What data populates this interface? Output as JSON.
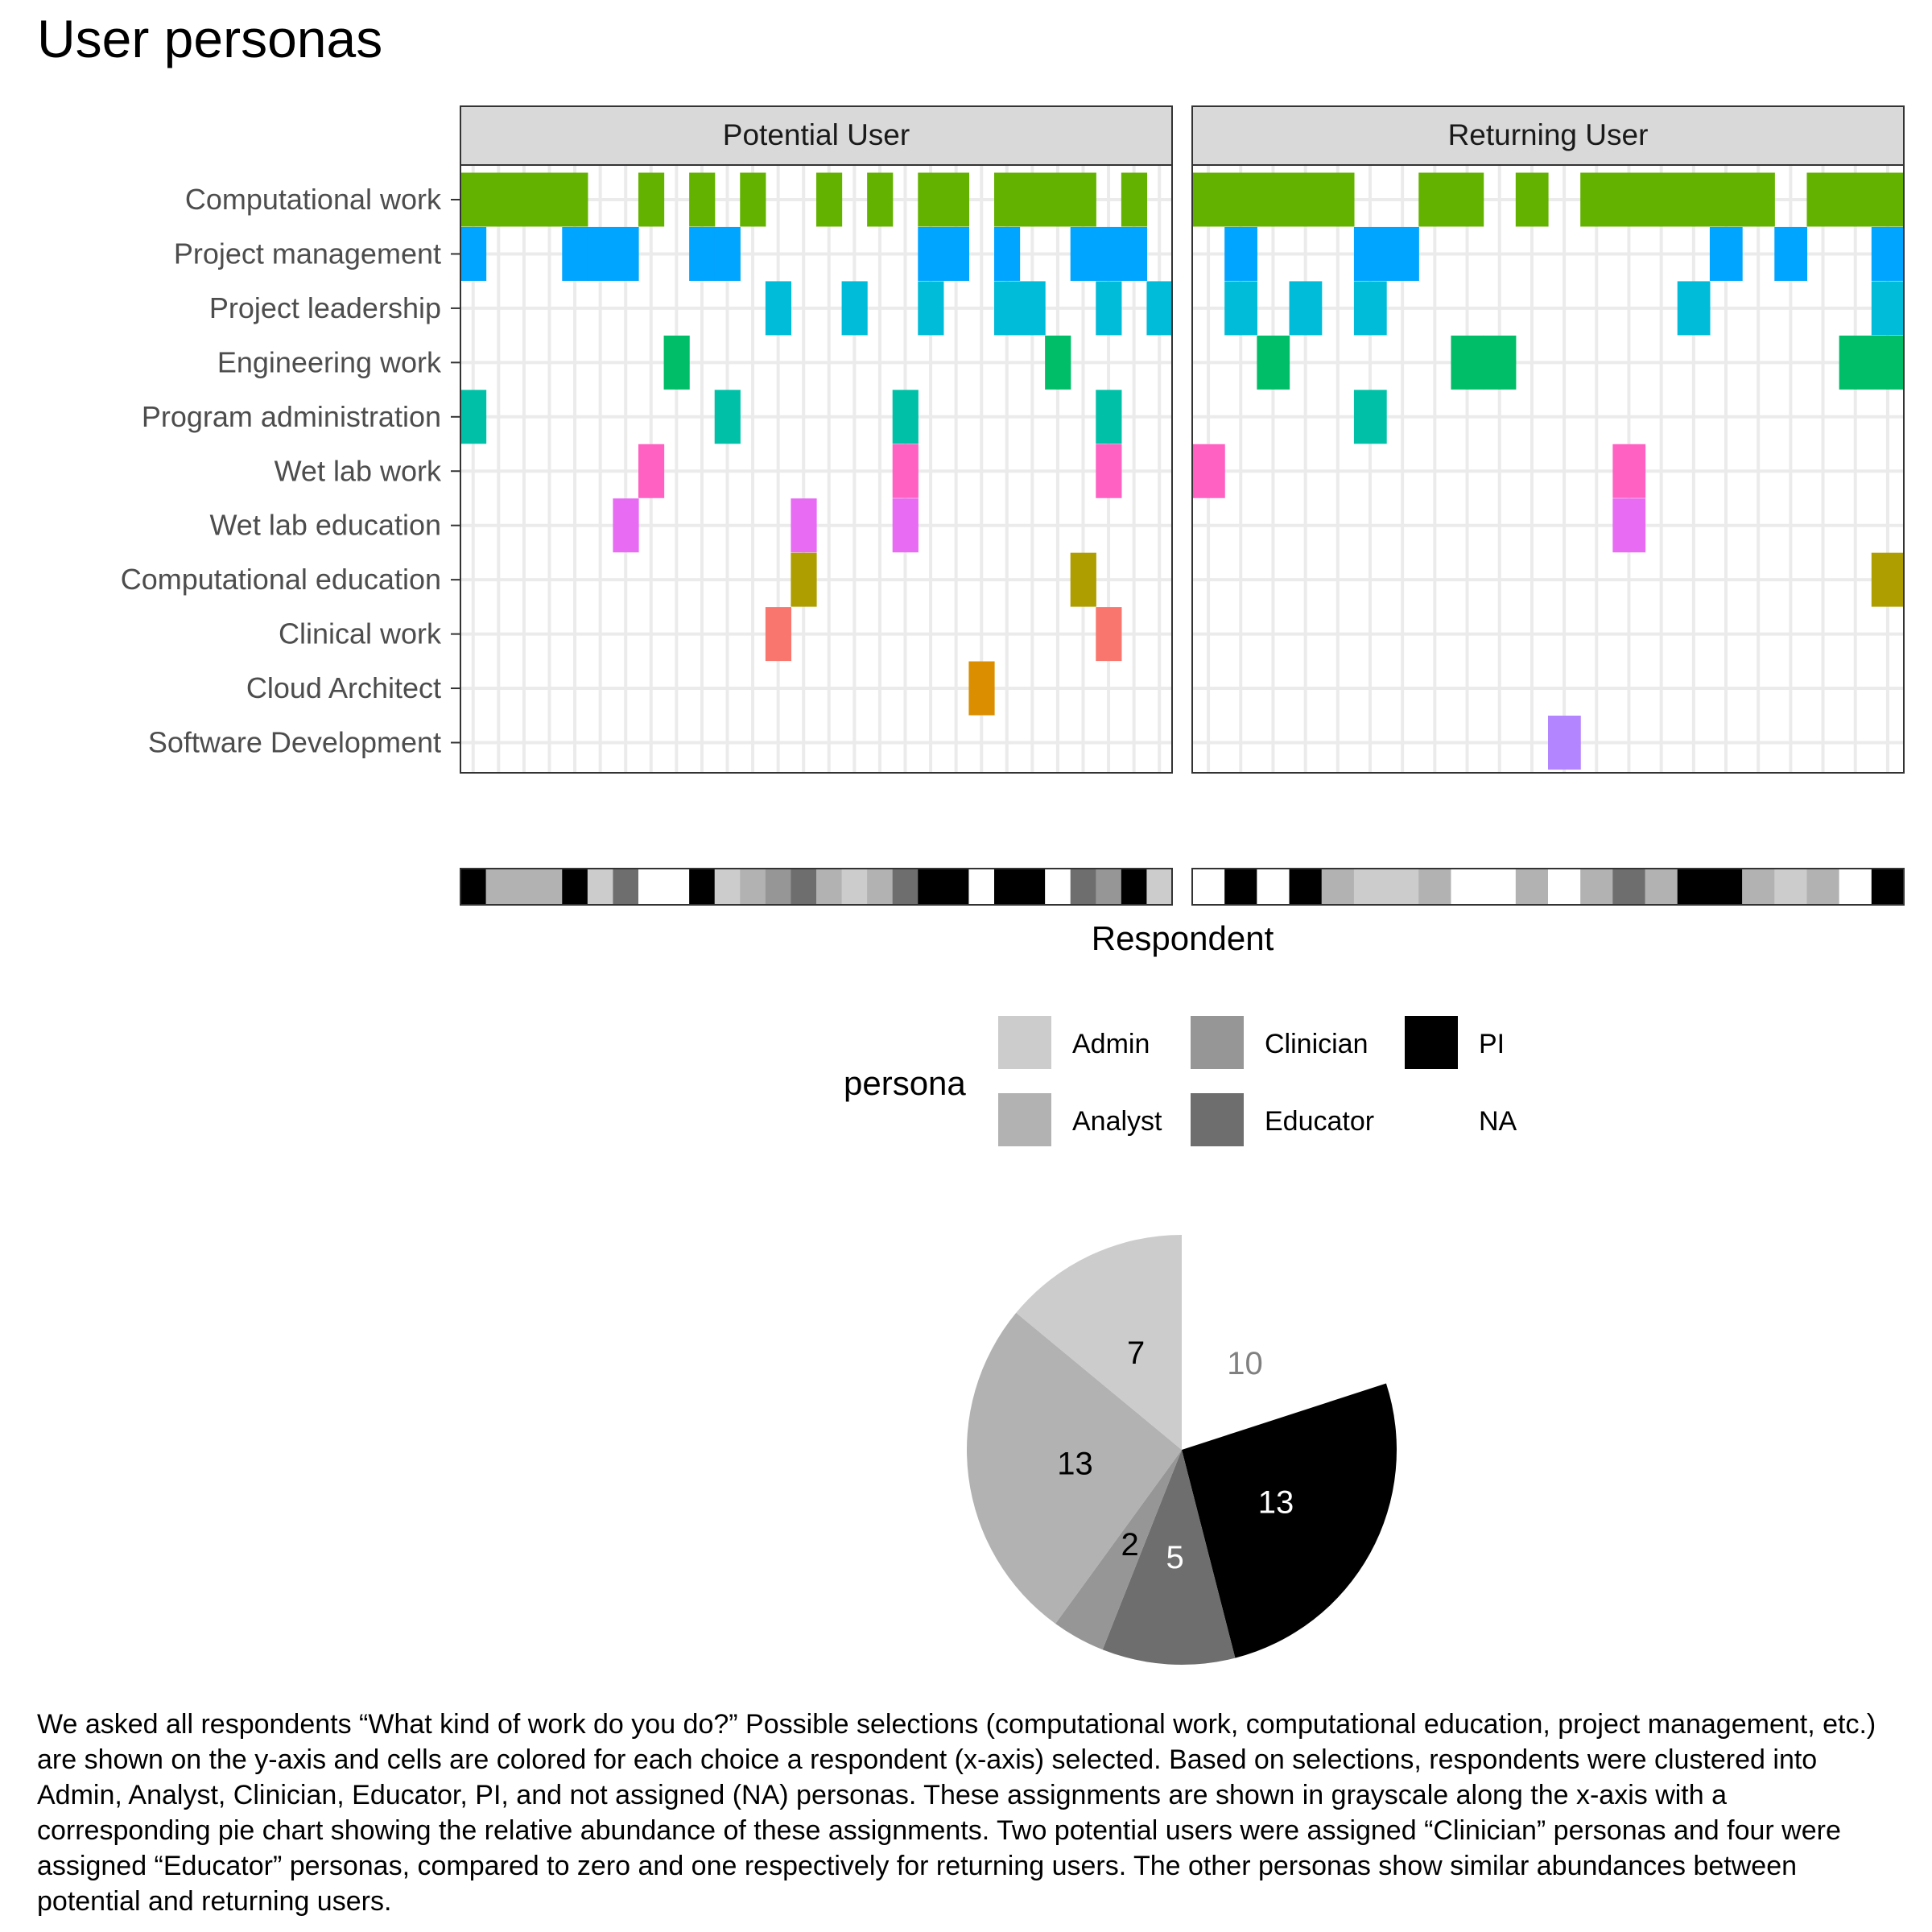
{
  "title": "User personas",
  "caption": "We asked all respondents “What kind of work do you do?” Possible selections (computational work, computational education, project management, etc.) are shown on the y-axis and cells are colored for each choice a respondent (x-axis) selected. Based on selections, respondents were clustered into Admin, Analyst, Clinician, Educator, PI, and not assigned (NA) personas. These assignments are shown in grayscale along the x-axis with a corresponding pie chart showing the relative abundance of these assignments. Two potential users were assigned “Clinician” personas and four were assigned “Educator” personas, compared to zero and one respectively for returning users. The other personas show similar abundances between potential and returning users.",
  "chart_data": [
    {
      "type": "heatmap",
      "xlabel": "Respondent",
      "ylabel": "",
      "categories": [
        "Computational work",
        "Project management",
        "Project leadership",
        "Engineering work",
        "Program administration",
        "Wet lab work",
        "Wet lab education",
        "Computational education",
        "Clinical work",
        "Cloud Architect",
        "Software Development"
      ],
      "category_colors": {
        "Computational work": "#64b200",
        "Project management": "#00a5ff",
        "Project leadership": "#00bcd8",
        "Engineering work": "#00be67",
        "Program administration": "#00c1a7",
        "Wet lab work": "#ff61c3",
        "Wet lab education": "#e76bf3",
        "Computational education": "#ae9e00",
        "Clinical work": "#f8766d",
        "Cloud Architect": "#db8e00",
        "Software Development": "#b385ff"
      },
      "persona_colors": {
        "Admin": "#cccccc",
        "Analyst": "#b2b2b2",
        "Clinician": "#969696",
        "Educator": "#6e6e6e",
        "PI": "#000000",
        "NA": "#ffffff"
      },
      "panels": [
        {
          "name": "Potential User",
          "n": 28,
          "selections": {
            "Computational work": [
              0,
              1,
              2,
              3,
              4,
              7,
              9,
              11,
              14,
              16,
              18,
              19,
              21,
              22,
              23,
              24,
              26
            ],
            "Project management": [
              0,
              4,
              5,
              6,
              9,
              10,
              18,
              19,
              21,
              24,
              25,
              26
            ],
            "Project leadership": [
              12,
              15,
              18,
              21,
              22,
              25,
              27
            ],
            "Engineering work": [
              8,
              23
            ],
            "Program administration": [
              0,
              10,
              17,
              25
            ],
            "Wet lab work": [
              7,
              17,
              25
            ],
            "Wet lab education": [
              6,
              13,
              17
            ],
            "Computational education": [
              13,
              24
            ],
            "Clinical work": [
              12,
              25
            ],
            "Cloud Architect": [
              20
            ],
            "Software Development": []
          },
          "personas": [
            "PI",
            "Analyst",
            "Analyst",
            "Analyst",
            "PI",
            "Admin",
            "Educator",
            "NA",
            "NA",
            "PI",
            "Admin",
            "Analyst",
            "Clinician",
            "Educator",
            "Analyst",
            "Admin",
            "Analyst",
            "Educator",
            "PI",
            "PI",
            "NA",
            "PI",
            "PI",
            "NA",
            "Educator",
            "Clinician",
            "PI",
            "Admin"
          ]
        },
        {
          "name": "Returning User",
          "n": 22,
          "selections": {
            "Computational work": [
              0,
              1,
              2,
              3,
              4,
              7,
              8,
              10,
              12,
              13,
              14,
              15,
              16,
              17,
              19,
              20,
              21
            ],
            "Project management": [
              1,
              5,
              6,
              16,
              18,
              21
            ],
            "Project leadership": [
              1,
              3,
              5,
              15,
              21
            ],
            "Engineering work": [
              2,
              8,
              9,
              20,
              21
            ],
            "Program administration": [
              5
            ],
            "Wet lab work": [
              0,
              13
            ],
            "Wet lab education": [
              13
            ],
            "Computational education": [
              21
            ],
            "Clinical work": [],
            "Cloud Architect": [],
            "Software Development": [
              11
            ]
          },
          "personas": [
            "NA",
            "PI",
            "NA",
            "PI",
            "Analyst",
            "Admin",
            "Admin",
            "Analyst",
            "NA",
            "NA",
            "Analyst",
            "NA",
            "Analyst",
            "Educator",
            "Analyst",
            "PI",
            "PI",
            "Analyst",
            "Admin",
            "Analyst",
            "NA",
            "PI"
          ]
        }
      ]
    },
    {
      "type": "pie",
      "legend_title": "persona",
      "slices": [
        {
          "name": "NA",
          "value": 10,
          "color": "#ffffff",
          "label_color": "#808080"
        },
        {
          "name": "PI",
          "value": 13,
          "color": "#000000",
          "label_color": "#ffffff"
        },
        {
          "name": "Educator",
          "value": 5,
          "color": "#6e6e6e",
          "label_color": "#ffffff"
        },
        {
          "name": "Clinician",
          "value": 2,
          "color": "#969696",
          "label_color": "#000000"
        },
        {
          "name": "Analyst",
          "value": 13,
          "color": "#b2b2b2",
          "label_color": "#000000"
        },
        {
          "name": "Admin",
          "value": 7,
          "color": "#cccccc",
          "label_color": "#000000"
        }
      ]
    }
  ],
  "legend": {
    "title": "persona",
    "items": [
      {
        "label": "Admin",
        "color": "#cccccc"
      },
      {
        "label": "Analyst",
        "color": "#b2b2b2"
      },
      {
        "label": "Clinician",
        "color": "#969696"
      },
      {
        "label": "Educator",
        "color": "#6e6e6e"
      },
      {
        "label": "PI",
        "color": "#000000"
      },
      {
        "label": "NA",
        "color": "#ffffff"
      }
    ]
  }
}
